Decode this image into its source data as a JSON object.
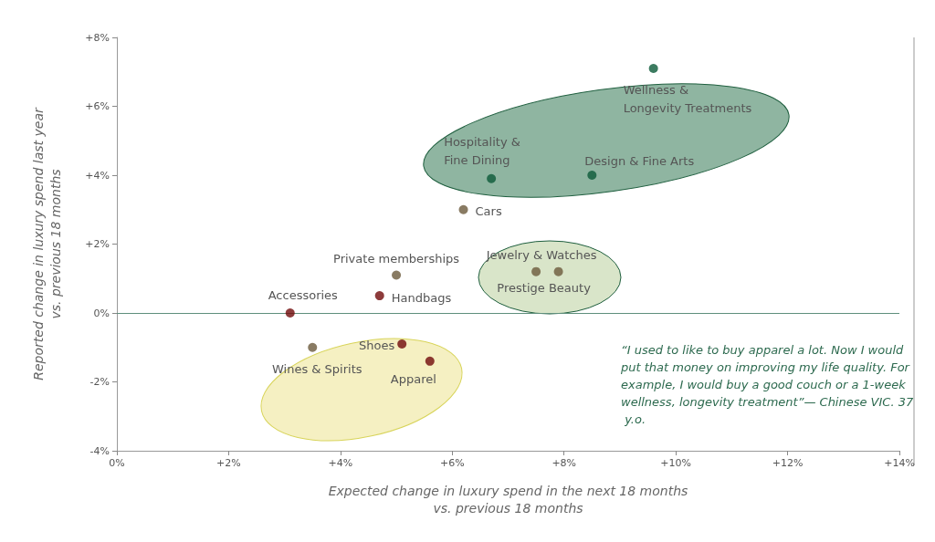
{
  "chart_data": {
    "type": "scatter",
    "xlabel": "Expected change in luxury spend in the next 18 months\nvs. previous 18 months",
    "ylabel": "Reported change in luxury spend last year\nvs. previous 18 months",
    "xlim": [
      0,
      14
    ],
    "xticks": [
      {
        "value": 0,
        "label": "0%"
      },
      {
        "value": 2,
        "label": "+2%"
      },
      {
        "value": 4,
        "label": "+4%"
      },
      {
        "value": 6,
        "label": "+6%"
      },
      {
        "value": 8,
        "label": "+8%"
      },
      {
        "value": 10,
        "label": "+10%"
      },
      {
        "value": 12,
        "label": "+12%"
      },
      {
        "value": 14,
        "label": "+14%"
      }
    ],
    "ylim": [
      -4,
      8
    ],
    "yticks": [
      {
        "value": -4,
        "label": "-4%"
      },
      {
        "value": -2,
        "label": "-2%"
      },
      {
        "value": 0,
        "label": "0%"
      },
      {
        "value": 2,
        "label": "+2%"
      },
      {
        "value": 4,
        "label": "+4%"
      },
      {
        "value": 6,
        "label": "+6%"
      },
      {
        "value": 8,
        "label": "+8%"
      }
    ],
    "grid": false,
    "marker": "circle",
    "series": [
      {
        "color": "#0b5a38",
        "x": [
          9.6,
          6.7,
          8.5
        ],
        "values": [
          7.1,
          3.9,
          4.0
        ]
      },
      {
        "color": "#6b5a3c",
        "x": [
          6.2,
          5.0,
          7.5,
          7.9,
          3.5
        ],
        "values": [
          3.0,
          1.1,
          1.2,
          1.2,
          -1.0
        ]
      },
      {
        "color": "#700a0a",
        "x": [
          3.1,
          4.7,
          5.1,
          5.6
        ],
        "values": [
          0.0,
          0.5,
          -0.9,
          -1.4
        ]
      }
    ],
    "ref_lines": [
      {
        "axis": "y",
        "value": 0,
        "color": "#5f8f7c"
      }
    ],
    "annotations": [
      {
        "text": "Wellness &\nLongevity Treatments",
        "x": 9.6,
        "y": 7.1
      },
      {
        "text": "Hospitality &\nFine Dining",
        "x": 6.7,
        "y": 3.9
      },
      {
        "text": "Design & Fine Arts",
        "x": 8.5,
        "y": 4.0
      },
      {
        "text": "Cars",
        "x": 6.2,
        "y": 3.0
      },
      {
        "text": "Private memberships",
        "x": 5.0,
        "y": 1.1
      },
      {
        "text": "Jewelry & Watches",
        "x": 7.5,
        "y": 1.2
      },
      {
        "text": "Prestige Beauty",
        "x": 7.9,
        "y": 1.2
      },
      {
        "text": "Accessories",
        "x": 3.1,
        "y": 0.0
      },
      {
        "text": "Handbags",
        "x": 4.7,
        "y": 0.5
      },
      {
        "text": "Shoes",
        "x": 5.1,
        "y": -0.9
      },
      {
        "text": "Wines & Spirits",
        "x": 3.5,
        "y": -1.0
      },
      {
        "text": "Apparel",
        "x": 5.6,
        "y": -1.4
      },
      "“I used to like to buy apparel a lot. Now I would put that money on improving my life quality. For example, I would buy a good couch or a 1-week wellness, longevity treatment”— Chinese VIC. 37 y.o."
    ]
  }
}
